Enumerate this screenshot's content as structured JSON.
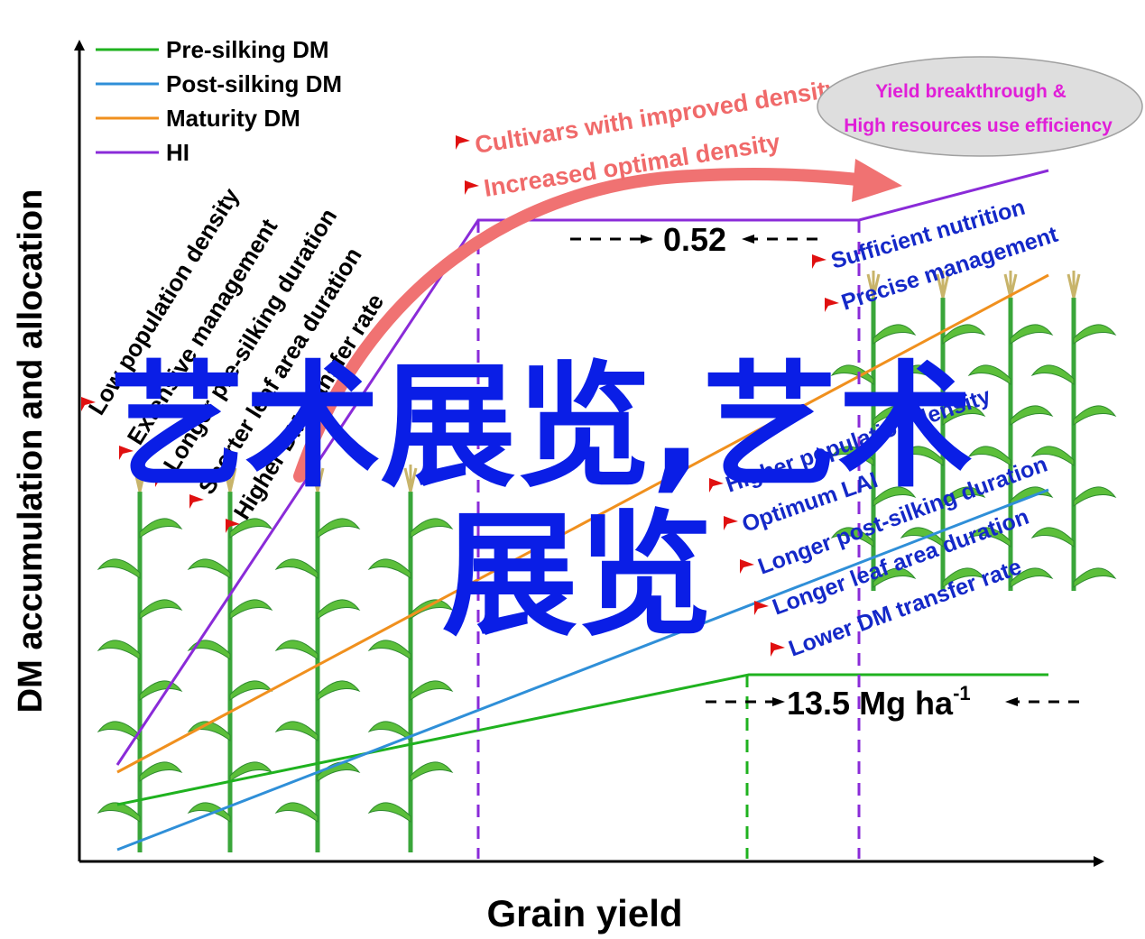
{
  "axes": {
    "y_label": "DM accumulation and allocation",
    "x_label": "Grain yield"
  },
  "legend": [
    {
      "label": "Pre-silking DM",
      "color": "#1fb21f"
    },
    {
      "label": "Post-silking DM",
      "color": "#2f8fd8"
    },
    {
      "label": "Maturity DM",
      "color": "#f0901e"
    },
    {
      "label": "HI",
      "color": "#8a2bd8"
    }
  ],
  "annotations": {
    "hi_gap": "0.52",
    "yield_gap": "13.5 Mg ha",
    "yield_gap_sup": "-1",
    "top_arrow_1": "Cultivars with improved density tolerance",
    "top_arrow_2": "Increased optimal density",
    "ellipse_line_1": "Yield breakthrough &",
    "ellipse_line_2": "High resources use efficiency"
  },
  "left_factors": [
    "Low population density",
    "Extensive management",
    "Longer pre-silking duration",
    "Shorter leaf area duration",
    "Higher DM transfer rate"
  ],
  "right_factors_top": [
    "Sufficient nutrition",
    "Precise management"
  ],
  "right_factors_bottom": [
    "Higher population density",
    "Optimum LAI",
    "Longer  post-silking duration",
    "Longer leaf area duration",
    "Lower DM transfer rate"
  ],
  "watermark": {
    "line_1": "艺术展览,艺术",
    "line_2": "展览"
  },
  "colors": {
    "pre_silking": "#1fb21f",
    "post_silking": "#2f8fd8",
    "maturity": "#f0901e",
    "hi": "#8a2bd8",
    "arrow": "#f06a6a",
    "factor_text": "#1428c8",
    "ellipse_text": "#e01ed8",
    "watermark": "#0a1ee6",
    "bullet": "#e01010"
  }
}
